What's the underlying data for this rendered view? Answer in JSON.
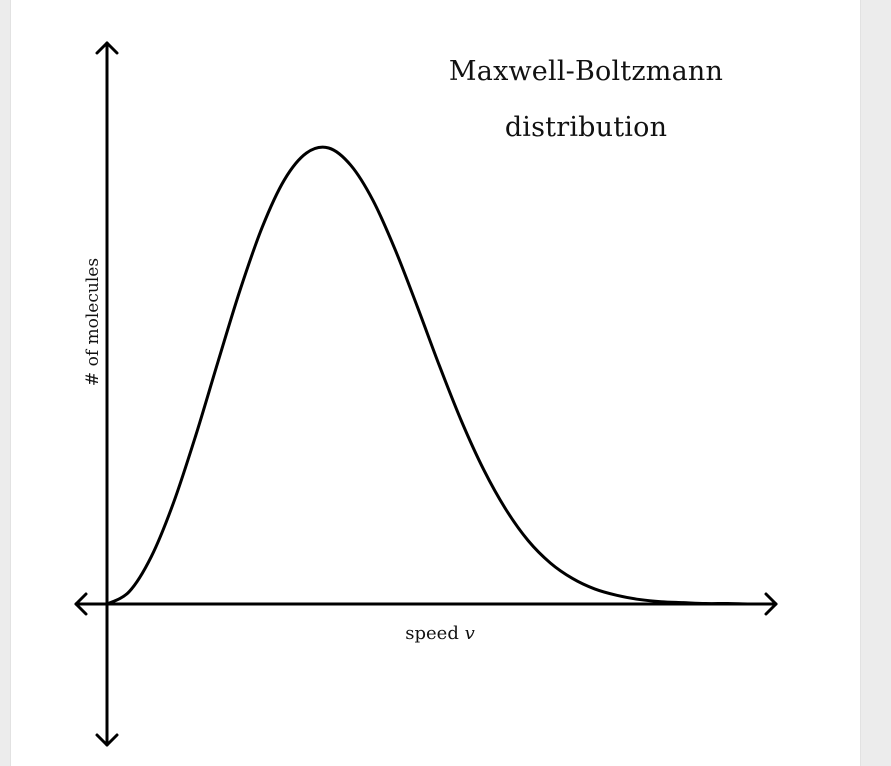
{
  "chart_data": {
    "type": "line",
    "title": "Maxwell-Boltzmann distribution",
    "title_lines": [
      "Maxwell-Boltzmann",
      "distribution"
    ],
    "xlabel": "speed",
    "xlabel_variable": "v",
    "ylabel": "# of molecules",
    "grid": false,
    "legend": "none",
    "xlim": [
      0,
      3
    ],
    "ylim": [
      0,
      1
    ],
    "series": [
      {
        "x": [
          0.0,
          0.1,
          0.2,
          0.3,
          0.4,
          0.5,
          0.6,
          0.7,
          0.8,
          0.9,
          1.0,
          1.1,
          1.2,
          1.3,
          1.4,
          1.5,
          1.6,
          1.7,
          1.8,
          1.9,
          2.0,
          2.1,
          2.2,
          2.3,
          2.4,
          2.5,
          2.6,
          2.7,
          2.8,
          2.9,
          3.0
        ],
        "y": [
          0.0,
          0.027,
          0.104,
          0.222,
          0.369,
          0.53,
          0.688,
          0.826,
          0.93,
          0.989,
          1.0,
          0.962,
          0.885,
          0.777,
          0.652,
          0.522,
          0.4,
          0.294,
          0.207,
          0.139,
          0.09,
          0.056,
          0.033,
          0.019,
          0.01,
          0.005,
          0.003,
          0.001,
          0.001,
          0.0,
          0.0
        ]
      }
    ],
    "colors": {
      "curve": "#000000",
      "axes": "#000000"
    }
  }
}
